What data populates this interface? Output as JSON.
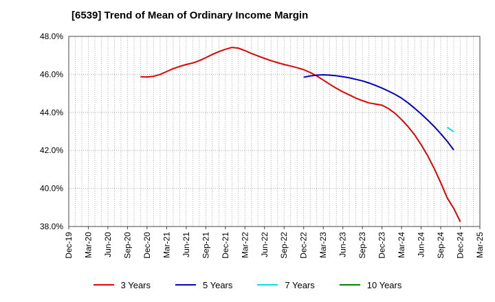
{
  "title": "[6539]  Trend of Mean of Ordinary Income Margin",
  "chart_data": {
    "type": "line",
    "title": "[6539]  Trend of Mean of Ordinary Income Margin",
    "xlabel": "",
    "ylabel": "",
    "ylim": [
      38.0,
      48.0
    ],
    "yticks": [
      38.0,
      40.0,
      42.0,
      44.0,
      46.0,
      48.0
    ],
    "ytick_labels": [
      "38.0%",
      "40.0%",
      "42.0%",
      "44.0%",
      "46.0%",
      "48.0%"
    ],
    "xticks": [
      "Dec-19",
      "Mar-20",
      "Jun-20",
      "Sep-20",
      "Dec-20",
      "Mar-21",
      "Jun-21",
      "Sep-21",
      "Dec-21",
      "Mar-22",
      "Jun-22",
      "Sep-22",
      "Dec-22",
      "Mar-23",
      "Jun-23",
      "Sep-23",
      "Dec-23",
      "Mar-24",
      "Jun-24",
      "Sep-24",
      "Dec-24",
      "Mar-25"
    ],
    "grid": "vertical monthly dotted, horizontal dotted",
    "legend_position": "bottom",
    "series": [
      {
        "name": "3 Years",
        "color": "#e00000",
        "points": [
          [
            "2020-11",
            45.88
          ],
          [
            "2020-12",
            45.86
          ],
          [
            "2021-01",
            45.9
          ],
          [
            "2021-02",
            46.0
          ],
          [
            "2021-03",
            46.15
          ],
          [
            "2021-04",
            46.3
          ],
          [
            "2021-05",
            46.42
          ],
          [
            "2021-06",
            46.52
          ],
          [
            "2021-07",
            46.6
          ],
          [
            "2021-08",
            46.72
          ],
          [
            "2021-09",
            46.88
          ],
          [
            "2021-10",
            47.05
          ],
          [
            "2021-11",
            47.2
          ],
          [
            "2021-12",
            47.32
          ],
          [
            "2022-01",
            47.42
          ],
          [
            "2022-02",
            47.38
          ],
          [
            "2022-03",
            47.25
          ],
          [
            "2022-04",
            47.1
          ],
          [
            "2022-05",
            46.97
          ],
          [
            "2022-06",
            46.84
          ],
          [
            "2022-07",
            46.72
          ],
          [
            "2022-08",
            46.62
          ],
          [
            "2022-09",
            46.52
          ],
          [
            "2022-10",
            46.44
          ],
          [
            "2022-11",
            46.35
          ],
          [
            "2022-12",
            46.25
          ],
          [
            "2023-01",
            46.1
          ],
          [
            "2023-02",
            45.92
          ],
          [
            "2023-03",
            45.7
          ],
          [
            "2023-04",
            45.48
          ],
          [
            "2023-05",
            45.27
          ],
          [
            "2023-06",
            45.08
          ],
          [
            "2023-07",
            44.92
          ],
          [
            "2023-08",
            44.75
          ],
          [
            "2023-09",
            44.62
          ],
          [
            "2023-10",
            44.5
          ],
          [
            "2023-11",
            44.44
          ],
          [
            "2023-12",
            44.38
          ],
          [
            "2024-01",
            44.2
          ],
          [
            "2024-02",
            43.95
          ],
          [
            "2024-03",
            43.62
          ],
          [
            "2024-04",
            43.25
          ],
          [
            "2024-05",
            42.82
          ],
          [
            "2024-06",
            42.3
          ],
          [
            "2024-07",
            41.72
          ],
          [
            "2024-08",
            41.05
          ],
          [
            "2024-09",
            40.3
          ],
          [
            "2024-10",
            39.5
          ],
          [
            "2024-11",
            38.95
          ],
          [
            "2024-12",
            38.25
          ]
        ]
      },
      {
        "name": "5 Years",
        "color": "#0000c0",
        "points": [
          [
            "2022-12",
            45.85
          ],
          [
            "2023-01",
            45.92
          ],
          [
            "2023-02",
            45.96
          ],
          [
            "2023-03",
            45.98
          ],
          [
            "2023-04",
            45.96
          ],
          [
            "2023-05",
            45.93
          ],
          [
            "2023-06",
            45.88
          ],
          [
            "2023-07",
            45.82
          ],
          [
            "2023-08",
            45.74
          ],
          [
            "2023-09",
            45.66
          ],
          [
            "2023-10",
            45.55
          ],
          [
            "2023-11",
            45.42
          ],
          [
            "2023-12",
            45.28
          ],
          [
            "2024-01",
            45.12
          ],
          [
            "2024-02",
            44.95
          ],
          [
            "2024-03",
            44.75
          ],
          [
            "2024-04",
            44.5
          ],
          [
            "2024-05",
            44.22
          ],
          [
            "2024-06",
            43.92
          ],
          [
            "2024-07",
            43.6
          ],
          [
            "2024-08",
            43.26
          ],
          [
            "2024-09",
            42.88
          ],
          [
            "2024-10",
            42.48
          ],
          [
            "2024-11",
            42.02
          ]
        ]
      },
      {
        "name": "7 Years",
        "color": "#00e0e0",
        "points": [
          [
            "2024-10",
            43.22
          ],
          [
            "2024-11",
            42.98
          ]
        ]
      },
      {
        "name": "10 Years",
        "color": "#008000",
        "points": []
      }
    ]
  }
}
